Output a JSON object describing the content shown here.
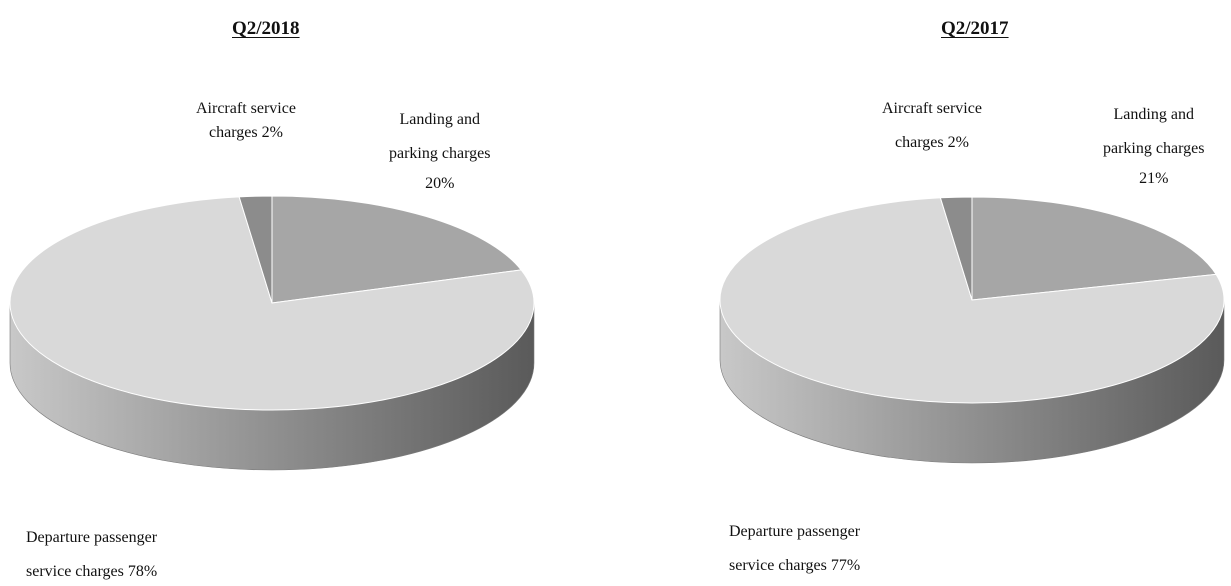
{
  "colors": {
    "landing_top": "#a6a6a6",
    "departure_top": "#d9d9d9",
    "aircraft_top": "#8c8c8c",
    "side_light": "#c8c8c8",
    "side_dark": "#5a5a5a"
  },
  "chart_data": [
    {
      "type": "pie",
      "title": "Q2/2018",
      "slices": [
        {
          "label": "Landing and parking charges",
          "value": 20
        },
        {
          "label": "Departure passenger service charges",
          "value": 78
        },
        {
          "label": "Aircraft service charges",
          "value": 2
        }
      ],
      "labels": {
        "aircraft": {
          "line1": "Aircraft service",
          "line2": "charges  2%"
        },
        "landing": {
          "line1": "Landing and",
          "line2": "parking charges",
          "line3": "20%"
        },
        "departure": {
          "line1": "Departure passenger",
          "line2": "service charges 78%"
        }
      }
    },
    {
      "type": "pie",
      "title": "Q2/2017",
      "slices": [
        {
          "label": "Landing and parking charges",
          "value": 21
        },
        {
          "label": "Departure passenger service charges",
          "value": 77
        },
        {
          "label": "Aircraft service charges",
          "value": 2
        }
      ],
      "labels": {
        "aircraft": {
          "line1": "Aircraft service",
          "line2": "charges  2%"
        },
        "landing": {
          "line1": "Landing and",
          "line2": "parking charges",
          "line3": "21%"
        },
        "departure": {
          "line1": "Departure passenger",
          "line2": "service charges 77%"
        }
      }
    }
  ]
}
